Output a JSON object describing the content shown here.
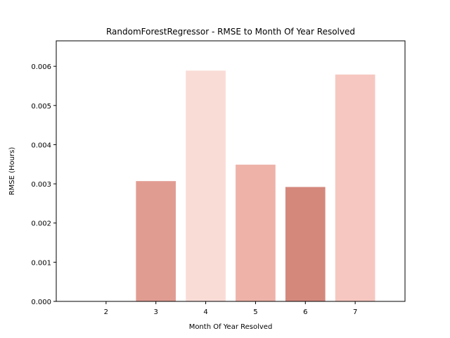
{
  "chart_data": {
    "type": "bar",
    "title": "RandomForestRegressor - RMSE to Month Of Year Resolved",
    "xlabel": "Month Of Year Resolved",
    "ylabel": "RMSE (Hours)",
    "categories": [
      "2",
      "3",
      "4",
      "5",
      "6",
      "7"
    ],
    "values": [
      0.0,
      0.00307,
      0.00589,
      0.00349,
      0.00292,
      0.00579
    ],
    "colors": [
      "#e8a89e",
      "#e19c92",
      "#fadcd7",
      "#eeb2a9",
      "#d4887c",
      "#f6c7c0"
    ],
    "xlim": [
      1,
      8
    ],
    "ylim": [
      0,
      0.00665
    ],
    "yticks": [
      "0.000",
      "0.001",
      "0.002",
      "0.003",
      "0.004",
      "0.005",
      "0.006"
    ],
    "ytick_values": [
      0,
      0.001,
      0.002,
      0.003,
      0.004,
      0.005,
      0.006
    ],
    "grid": false,
    "legend": false
  }
}
